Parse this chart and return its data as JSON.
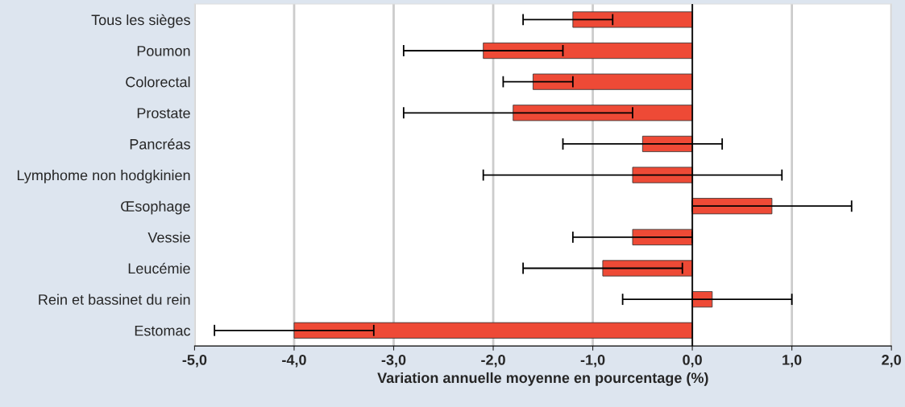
{
  "chart_data": {
    "type": "bar",
    "orientation": "horizontal",
    "categories": [
      "Tous les sièges",
      "Poumon",
      "Colorectal",
      "Prostate",
      "Pancréas",
      "Lymphome non hodgkinien",
      "Œsophage",
      "Vessie",
      "Leucémie",
      "Rein et bassinet du rein",
      "Estomac"
    ],
    "values": [
      -1.2,
      -2.1,
      -1.6,
      -1.8,
      -0.5,
      -0.6,
      0.8,
      -0.6,
      -0.9,
      0.2,
      -4.0
    ],
    "errors": [
      [
        -1.7,
        -0.8
      ],
      [
        -2.9,
        -1.3
      ],
      [
        -1.9,
        -1.2
      ],
      [
        -2.9,
        -0.6
      ],
      [
        -1.3,
        0.3
      ],
      [
        -2.1,
        0.9
      ],
      [
        0.0,
        1.6
      ],
      [
        -1.2,
        0.0
      ],
      [
        -1.7,
        -0.1
      ],
      [
        -0.7,
        1.0
      ],
      [
        -4.8,
        -3.2
      ]
    ],
    "color": "#ee4a36",
    "xlabel": "Variation annuelle moyenne en pourcentage (%)",
    "xlim": [
      -5,
      2
    ],
    "xticks": [
      {
        "value": -5,
        "label": "-5,0"
      },
      {
        "value": -4,
        "label": "-4,0"
      },
      {
        "value": -3,
        "label": "-3,0"
      },
      {
        "value": -2,
        "label": "-2,0"
      },
      {
        "value": -1,
        "label": "-1,0"
      },
      {
        "value": 0,
        "label": "0,0"
      },
      {
        "value": 1,
        "label": "1,0"
      },
      {
        "value": 2,
        "label": "2,0"
      }
    ],
    "ref_lines": [
      {
        "axis": "x",
        "value": 0,
        "color": "#000000"
      }
    ],
    "grid": "x",
    "legend": false
  }
}
